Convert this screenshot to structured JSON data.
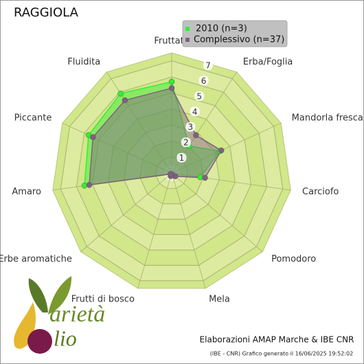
{
  "chart_data": {
    "type": "radar",
    "title": "RAGGIOLA",
    "categories": [
      "Fruttato",
      "Erba/Foglia",
      "Mandorla fresca",
      "Carciofo",
      "Pomodoro",
      "Mela",
      "Frutti di bosco",
      "Erbe aromatiche",
      "Amaro",
      "Piccante",
      "Fluidita"
    ],
    "series": [
      {
        "name": "2010 (n=3)",
        "color": "#33ee33",
        "values": [
          5.7,
          2.0,
          3.3,
          1.8,
          0.3,
          0.1,
          0.1,
          0.1,
          5.5,
          5.7,
          5.9
        ]
      },
      {
        "name": "Complessivo (n=37)",
        "color": "#806080",
        "values": [
          5.3,
          2.8,
          3.4,
          2.1,
          0.3,
          0.1,
          0.2,
          0.1,
          5.2,
          5.4,
          5.4
        ]
      }
    ],
    "ylim": [
      0,
      7.5
    ],
    "yticks": [
      1,
      2,
      3,
      4,
      5,
      6,
      7
    ],
    "grid": true,
    "legend": "top-right"
  },
  "footer": {
    "credits": "Elaborazioni AMAP Marche & IBE CNR",
    "note": "(IBE - CNR) Grafico generato il 16/06/2025 19:52:02"
  },
  "logo": {
    "top": "arietà",
    "bottom": "lio"
  }
}
